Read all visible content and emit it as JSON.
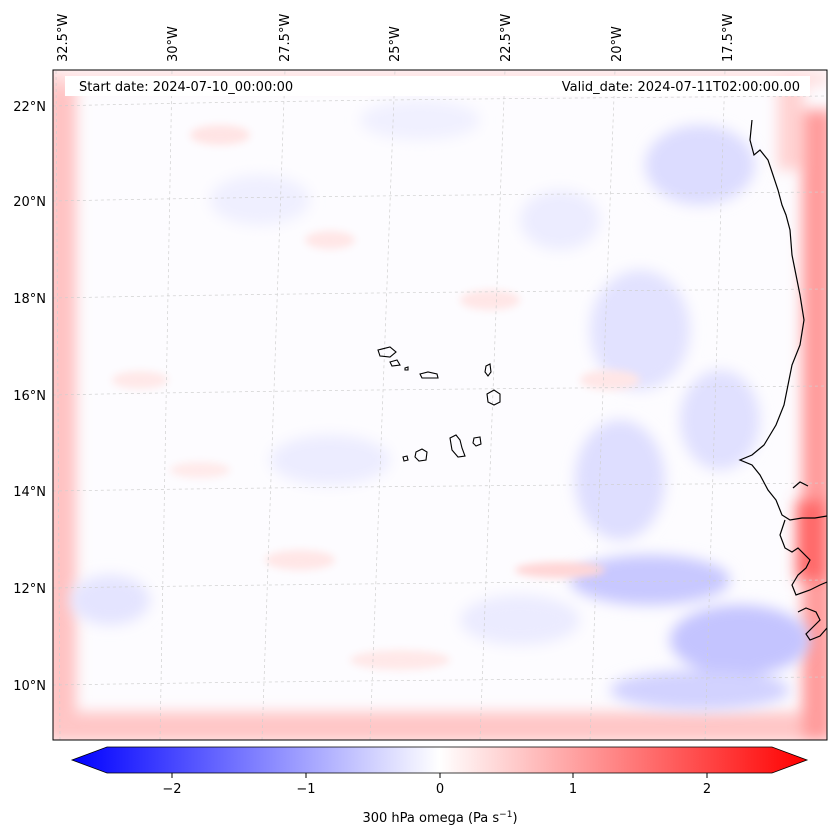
{
  "header": {
    "start_date": "Start date: 2024-07-10_00:00:00",
    "valid_date": "Valid_date: 2024-07-11T02:00:00.00"
  },
  "longitude_ticks": [
    "32.5°W",
    "30°W",
    "27.5°W",
    "25°W",
    "22.5°W",
    "20°W",
    "17.5°W"
  ],
  "latitude_ticks": [
    "22°N",
    "20°N",
    "18°N",
    "16°N",
    "14°N",
    "12°N",
    "10°N"
  ],
  "colorbar": {
    "label": "300 hPa omega (Pa s",
    "label_exponent": "−1",
    "label_close": ")",
    "ticks": [
      "−2",
      "−1",
      "0",
      "1",
      "2"
    ],
    "tick_values": [
      -2,
      -1,
      0,
      1,
      2
    ],
    "vmin": -2.6,
    "vmax": 2.6,
    "colormap": "bwr",
    "low_color": "#0000ff",
    "mid_color": "#ffffff",
    "high_color": "#ff0000"
  },
  "map": {
    "field": "300 hPa omega",
    "extent_lon": [
      -33,
      -15.5
    ],
    "extent_lat": [
      9,
      22.8
    ],
    "coastline_color": "#000000",
    "gridline_color": "#cccccc",
    "features": [
      "Cabo Verde islands",
      "West African coastline"
    ]
  }
}
